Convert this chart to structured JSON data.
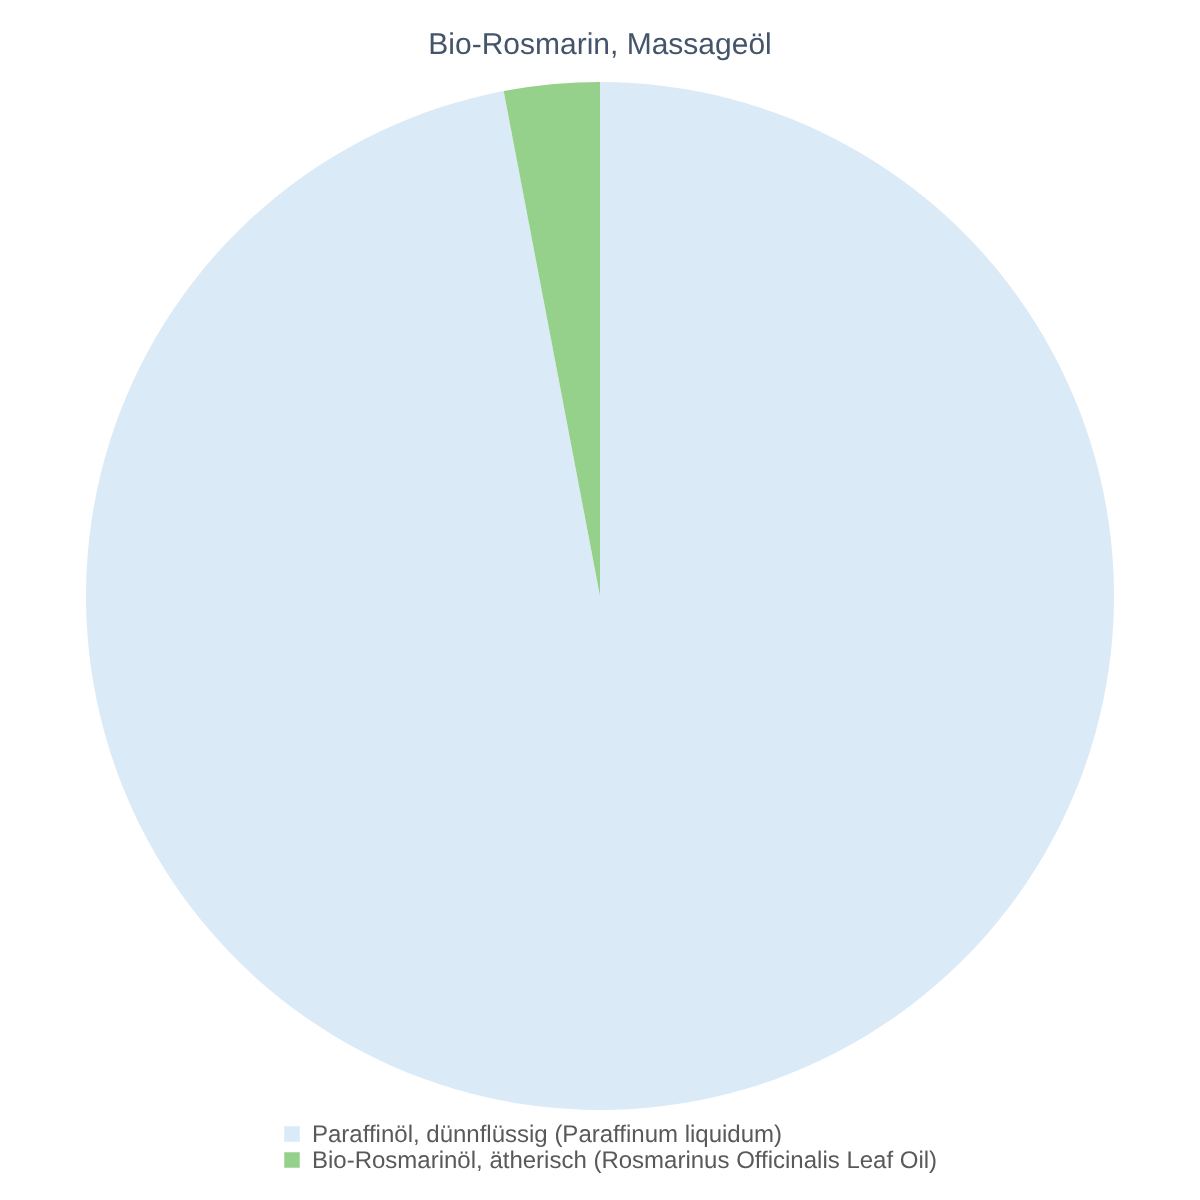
{
  "chart_data": {
    "type": "pie",
    "title": "Bio-Rosmarin, Massageöl",
    "categories": [
      "Paraffinöl, dünnflüssig (Paraffinum liquidum)",
      "Bio-Rosmarinöl, ätherisch (Rosmarinus Officinalis Leaf Oil)"
    ],
    "values": [
      97,
      3
    ],
    "colors": [
      "#dbeaf7",
      "#95d18a"
    ],
    "legend": "bottom"
  }
}
